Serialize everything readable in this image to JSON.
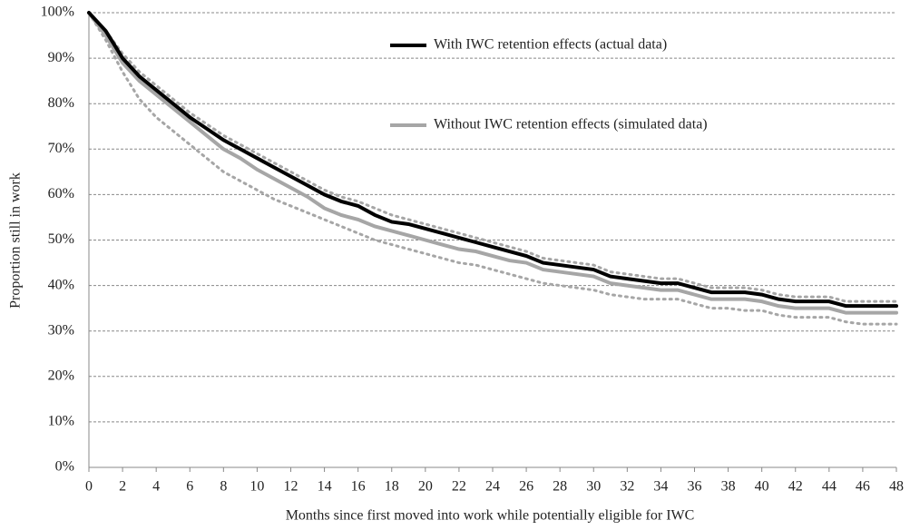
{
  "chart_data": {
    "type": "line",
    "x_label": "Months since first moved into work while potentially eligible  for IWC",
    "y_label": "Proportion still  in work",
    "x": [
      0,
      1,
      2,
      3,
      4,
      5,
      6,
      7,
      8,
      9,
      10,
      11,
      12,
      13,
      14,
      15,
      16,
      17,
      18,
      19,
      20,
      21,
      22,
      23,
      24,
      25,
      26,
      27,
      28,
      29,
      30,
      31,
      32,
      33,
      34,
      35,
      36,
      37,
      38,
      39,
      40,
      41,
      42,
      43,
      44,
      45,
      46,
      47,
      48
    ],
    "xlim": [
      0,
      48
    ],
    "xticks": [
      0,
      2,
      4,
      6,
      8,
      10,
      12,
      14,
      16,
      18,
      20,
      22,
      24,
      26,
      28,
      30,
      32,
      34,
      36,
      38,
      40,
      42,
      44,
      46,
      48
    ],
    "ylim": [
      0,
      100
    ],
    "yticks": [
      {
        "value": 0,
        "label": "0%"
      },
      {
        "value": 10,
        "label": "10%"
      },
      {
        "value": 20,
        "label": "20%"
      },
      {
        "value": 30,
        "label": "30%"
      },
      {
        "value": 40,
        "label": "40%"
      },
      {
        "value": 50,
        "label": "50%"
      },
      {
        "value": 60,
        "label": "60%"
      },
      {
        "value": 70,
        "label": "70%"
      },
      {
        "value": 80,
        "label": "80%"
      },
      {
        "value": 90,
        "label": "90%"
      },
      {
        "value": 100,
        "label": "100%"
      }
    ],
    "grid": true,
    "series": [
      {
        "color": "#a6a6a6",
        "dash": true,
        "values": [
          100,
          96,
          91,
          87,
          84,
          81,
          78,
          75.5,
          73,
          71,
          69,
          67,
          65,
          63,
          61,
          59.5,
          58.5,
          57,
          55.5,
          54.5,
          53.5,
          52.5,
          51.5,
          50.5,
          49.5,
          48.5,
          47.5,
          46,
          45.5,
          45,
          44.5,
          43,
          42.5,
          42,
          41.5,
          41.5,
          40.5,
          39.5,
          39.5,
          39.5,
          39,
          38,
          37.5,
          37.5,
          37.5,
          36.5,
          36.5,
          36.5,
          36.5
        ]
      },
      {
        "color": "#a6a6a6",
        "dash": true,
        "values": [
          100,
          94,
          87,
          81,
          77,
          74,
          71,
          68,
          65,
          63,
          61,
          59,
          57.5,
          56,
          54.5,
          53,
          51.5,
          50,
          49,
          48,
          47,
          46,
          45,
          44.5,
          43.5,
          42.5,
          41.5,
          40.5,
          40,
          39.5,
          39,
          38,
          37.5,
          37,
          37,
          37,
          36,
          35,
          35,
          34.5,
          34.5,
          33.5,
          33,
          33,
          33,
          32,
          31.5,
          31.5,
          31.5
        ]
      },
      {
        "name": "Without IWC retention effects (simulated data)",
        "color": "#a6a6a6",
        "values": [
          100,
          95,
          89,
          85,
          82,
          79,
          76,
          73,
          70,
          68,
          65.5,
          63.5,
          61.5,
          59.5,
          57,
          55.5,
          54.5,
          53,
          52,
          51,
          50,
          49,
          48,
          47.5,
          46.5,
          45.5,
          45,
          43.5,
          43,
          42.5,
          42,
          40.5,
          40,
          39.5,
          39,
          39,
          38,
          37,
          37,
          37,
          36.5,
          35.5,
          35,
          35,
          35,
          34,
          34,
          34,
          34
        ]
      },
      {
        "name": "With IWC retention effects (actual data)",
        "color": "#000000",
        "values": [
          100,
          96,
          90,
          86,
          83,
          80,
          77,
          74.5,
          72,
          70,
          68,
          66,
          64,
          62,
          60,
          58.5,
          57.5,
          55.5,
          54,
          53.5,
          52.5,
          51.5,
          50.5,
          49.5,
          48.5,
          47.5,
          46.5,
          45,
          44.5,
          44,
          43.5,
          42,
          41.5,
          41,
          40.5,
          40.5,
          39.5,
          38.5,
          38.5,
          38.5,
          38,
          37,
          36.5,
          36.5,
          36.5,
          35.5,
          35.5,
          35.5,
          35.5
        ]
      }
    ]
  }
}
